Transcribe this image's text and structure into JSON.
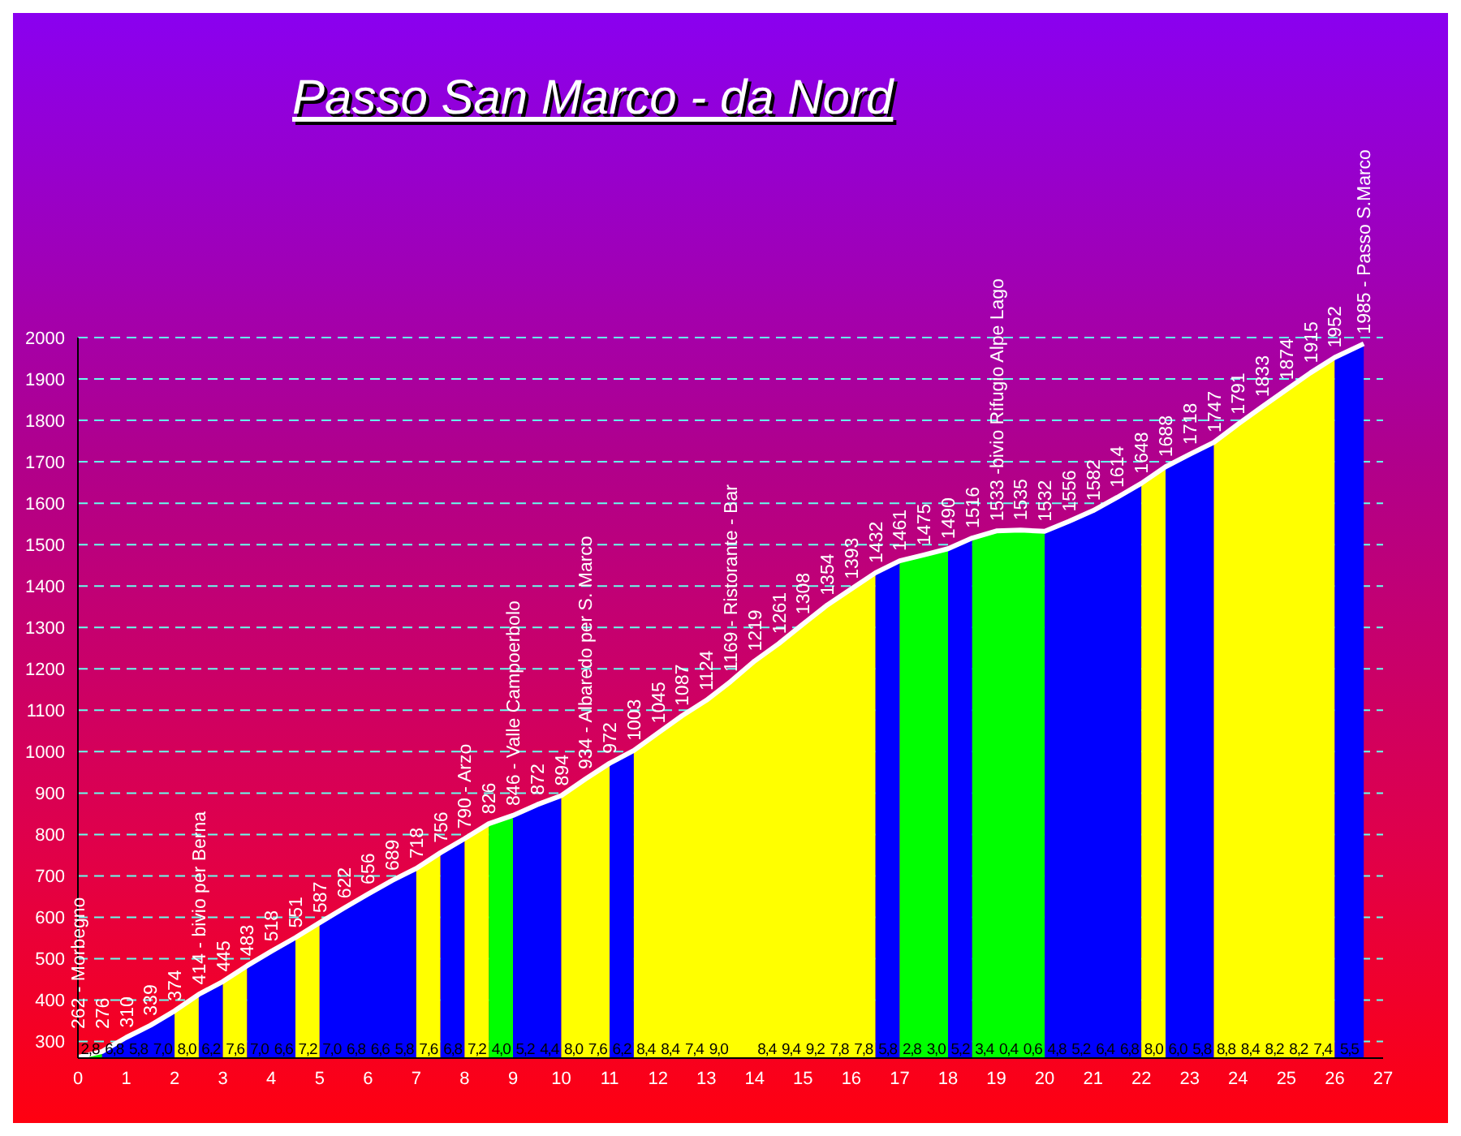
{
  "chart_data": {
    "type": "area",
    "title": "Passo San Marco - da Nord",
    "xlim": [
      0,
      27
    ],
    "xticks": [
      0,
      1,
      2,
      3,
      4,
      5,
      6,
      7,
      8,
      9,
      10,
      11,
      12,
      13,
      14,
      15,
      16,
      17,
      18,
      19,
      20,
      21,
      22,
      23,
      24,
      25,
      26,
      27
    ],
    "ylim": [
      260,
      2000
    ],
    "yticks": [
      300,
      400,
      500,
      600,
      700,
      800,
      900,
      1000,
      1100,
      1200,
      1300,
      1400,
      1500,
      1600,
      1700,
      1800,
      1900,
      2000
    ],
    "grid": "y",
    "series": [
      {
        "color": "#00ff00",
        "x": [
          0,
          0.5
        ],
        "values": [
          262,
          276
        ]
      },
      {
        "color": "#0000ff",
        "x": [
          0.5,
          1,
          1.5,
          2
        ],
        "values": [
          276,
          310,
          339,
          374
        ]
      },
      {
        "color": "#ffff00",
        "x": [
          2,
          2.5
        ],
        "values": [
          374,
          414
        ]
      },
      {
        "color": "#0000ff",
        "x": [
          2.5,
          3
        ],
        "values": [
          414,
          445
        ]
      },
      {
        "color": "#ffff00",
        "x": [
          3,
          3.5
        ],
        "values": [
          445,
          483
        ]
      },
      {
        "color": "#0000ff",
        "x": [
          3.5,
          4,
          4.5
        ],
        "values": [
          483,
          518,
          551
        ]
      },
      {
        "color": "#ffff00",
        "x": [
          4.5,
          5
        ],
        "values": [
          551,
          587
        ]
      },
      {
        "color": "#0000ff",
        "x": [
          5,
          5.5,
          6,
          6.5,
          7
        ],
        "values": [
          587,
          622,
          656,
          689,
          718
        ]
      },
      {
        "color": "#ffff00",
        "x": [
          7,
          7.5
        ],
        "values": [
          718,
          756
        ]
      },
      {
        "color": "#0000ff",
        "x": [
          7.5,
          8
        ],
        "values": [
          756,
          790
        ]
      },
      {
        "color": "#ffff00",
        "x": [
          8,
          8.5
        ],
        "values": [
          790,
          826
        ]
      },
      {
        "color": "#00ff00",
        "x": [
          8.5,
          9
        ],
        "values": [
          826,
          846
        ]
      },
      {
        "color": "#0000ff",
        "x": [
          9,
          9.5,
          10
        ],
        "values": [
          846,
          872,
          894
        ]
      },
      {
        "color": "#ffff00",
        "x": [
          10,
          10.5,
          11
        ],
        "values": [
          894,
          934,
          972
        ]
      },
      {
        "color": "#0000ff",
        "x": [
          11,
          11.5
        ],
        "values": [
          972,
          1003
        ]
      },
      {
        "color": "#ffff00",
        "x": [
          11.5,
          12,
          12.5,
          13,
          13.5,
          14,
          14.5,
          15,
          15.5,
          16,
          16.5
        ],
        "values": [
          1003,
          1045,
          1087,
          1124,
          1169,
          1219,
          1261,
          1308,
          1354,
          1393,
          1432
        ]
      },
      {
        "color": "#0000ff",
        "x": [
          16.5,
          17
        ],
        "values": [
          1432,
          1461
        ]
      },
      {
        "color": "#00ff00",
        "x": [
          17,
          17.5,
          18
        ],
        "values": [
          1461,
          1475,
          1490
        ]
      },
      {
        "color": "#0000ff",
        "x": [
          18,
          18.5
        ],
        "values": [
          1490,
          1516
        ]
      },
      {
        "color": "#00ff00",
        "x": [
          18.5,
          19,
          19.5,
          20
        ],
        "values": [
          1516,
          1533,
          1535,
          1532
        ]
      },
      {
        "color": "#0000ff",
        "x": [
          20,
          20.5,
          21,
          21.5,
          22
        ],
        "values": [
          1532,
          1556,
          1582,
          1614,
          1648
        ]
      },
      {
        "color": "#ffff00",
        "x": [
          22,
          22.5
        ],
        "values": [
          1648,
          1688
        ]
      },
      {
        "color": "#0000ff",
        "x": [
          22.5,
          23,
          23.5
        ],
        "values": [
          1688,
          1718,
          1747
        ]
      },
      {
        "color": "#ffff00",
        "x": [
          23.5,
          24,
          24.5,
          25,
          25.5,
          26
        ],
        "values": [
          1747,
          1791,
          1833,
          1874,
          1915,
          1952
        ]
      },
      {
        "color": "#0000ff",
        "x": [
          26,
          26.6
        ],
        "values": [
          1952,
          1985
        ]
      },
      {
        "type": "line",
        "color": "#ffffff",
        "x": [
          0,
          0.5,
          1,
          1.5,
          2,
          2.5,
          3,
          3.5,
          4,
          4.5,
          5,
          5.5,
          6,
          6.5,
          7,
          7.5,
          8,
          8.5,
          9,
          9.5,
          10,
          10.5,
          11,
          11.5,
          12,
          12.5,
          13,
          13.5,
          14,
          14.5,
          15,
          15.5,
          16,
          16.5,
          17,
          17.5,
          18,
          18.5,
          19,
          19.5,
          20,
          20.5,
          21,
          21.5,
          22,
          22.5,
          23,
          23.5,
          24,
          24.5,
          25,
          25.5,
          26,
          26.6
        ],
        "values": [
          262,
          276,
          310,
          339,
          374,
          414,
          445,
          483,
          518,
          551,
          587,
          622,
          656,
          689,
          718,
          756,
          790,
          826,
          846,
          872,
          894,
          934,
          972,
          1003,
          1045,
          1087,
          1124,
          1169,
          1219,
          1261,
          1308,
          1354,
          1393,
          1432,
          1461,
          1475,
          1490,
          1516,
          1533,
          1535,
          1532,
          1556,
          1582,
          1614,
          1648,
          1688,
          1718,
          1747,
          1791,
          1833,
          1874,
          1915,
          1952,
          1985
        ],
        "value_labels": [
          "262 - Morbegno",
          "276",
          "310",
          "339",
          "374",
          "414 - bivio per Berna",
          "445",
          "483",
          "518",
          "551",
          "587",
          "622",
          "656",
          "689",
          "718",
          "756",
          "790 - Arzo",
          "826",
          "846 - Valle Campoerbolo",
          "872",
          "894",
          "934 - Albaredo per S. Marco",
          "972",
          "1003",
          "1045",
          "1087",
          "1124",
          "1169 - Ristorante - Bar",
          "1219",
          "1261",
          "1308",
          "1354",
          "1393",
          "1432",
          "1461",
          "1475",
          "1490",
          "1516",
          "1533 -bivio Rifugio Alpe Lago",
          "1535",
          "1532",
          "1556",
          "1582",
          "1614",
          "1648",
          "1688",
          "1718",
          "1747",
          "1791",
          "1833",
          "1874",
          "1915",
          "1952",
          "1985 - Passo S.Marco"
        ]
      }
    ],
    "annotations": [
      "2,8",
      "6,8",
      "5,8",
      "7,0",
      "8,0",
      "6,2",
      "7,6",
      "7,0",
      "6,6",
      "7,2",
      "7,0",
      "6,8",
      "6,6",
      "5,8",
      "7,6",
      "6,8",
      "7,2",
      "4,0",
      "5,2",
      "4,4",
      "8,0",
      "7,6",
      "6,2",
      "8,4",
      "8,4",
      "7,4",
      "9,0",
      "8,4",
      "9,4",
      "9,2",
      "7,8",
      "7,8",
      "5,8",
      "2,8",
      "3,0",
      "5,2",
      "3,4",
      "0,4",
      "0,6",
      "4,8",
      "5,2",
      "6,4",
      "6,8",
      "8,0",
      "6,0",
      "5,8",
      "8,8",
      "8,4",
      "8,2",
      "8,2",
      "7,4",
      "5,5"
    ]
  }
}
